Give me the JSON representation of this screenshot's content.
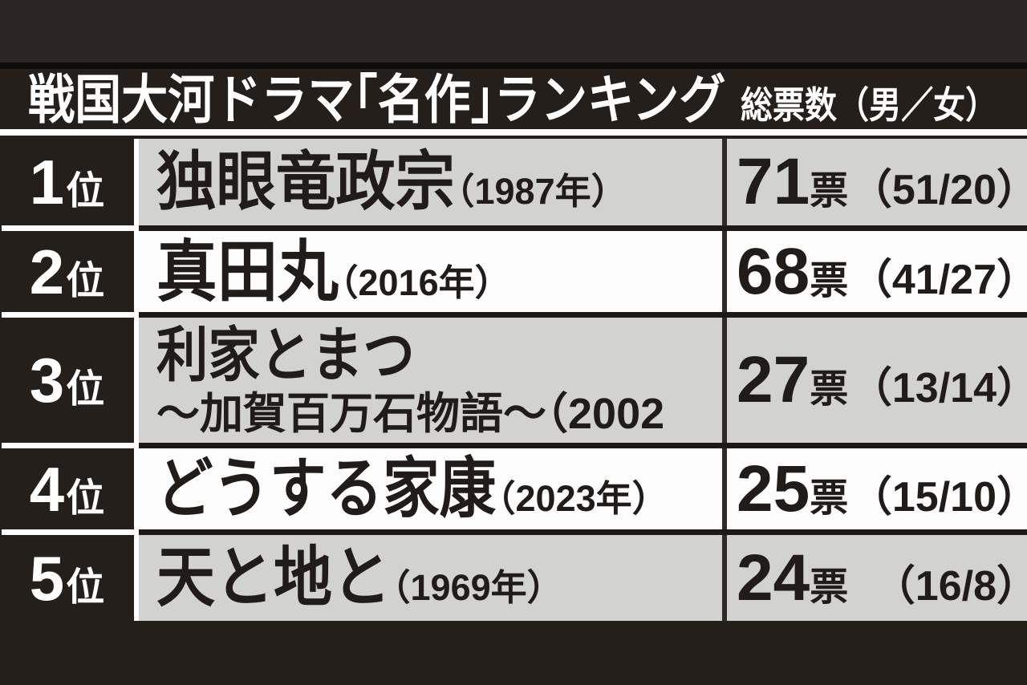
{
  "header": {
    "title": "戦国大河ドラマ「名作」ランキング",
    "vote_header": "総票数（男／女）"
  },
  "colors": {
    "background": "#251f1c",
    "row_gray": "#d2d2d0",
    "row_white": "#fdfdfd",
    "text_dark": "#211c19",
    "text_white": "#ffffff"
  },
  "chart_data": {
    "type": "table",
    "title": "戦国大河ドラマ「名作」ランキング",
    "vote_header": "総票数（男／女）",
    "rows": [
      {
        "rank": "1",
        "rank_suffix": "位",
        "title": "独眼竜政宗",
        "year": "（1987年）",
        "subtitle": "",
        "votes": "71",
        "votes_unit": "票",
        "breakdown": "（51/20）",
        "votes_total": 71,
        "votes_male": 51,
        "votes_female": 20
      },
      {
        "rank": "2",
        "rank_suffix": "位",
        "title": "真田丸",
        "year": "（2016年）",
        "subtitle": "",
        "votes": "68",
        "votes_unit": "票",
        "breakdown": "（41/27）",
        "votes_total": 68,
        "votes_male": 41,
        "votes_female": 27
      },
      {
        "rank": "3",
        "rank_suffix": "位",
        "title": "利家とまつ",
        "year": "",
        "subtitle": "～加賀百万石物語～（2002",
        "votes": "27",
        "votes_unit": "票",
        "breakdown": "（13/14）",
        "votes_total": 27,
        "votes_male": 13,
        "votes_female": 14
      },
      {
        "rank": "4",
        "rank_suffix": "位",
        "title": "どうする家康",
        "year": "（2023年）",
        "subtitle": "",
        "votes": "25",
        "votes_unit": "票",
        "breakdown": "（15/10）",
        "votes_total": 25,
        "votes_male": 15,
        "votes_female": 10
      },
      {
        "rank": "5",
        "rank_suffix": "位",
        "title": "天と地と",
        "year": "（1969年）",
        "subtitle": "",
        "votes": "24",
        "votes_unit": "票",
        "breakdown": "（16/8）",
        "votes_total": 24,
        "votes_male": 16,
        "votes_female": 8
      }
    ]
  }
}
